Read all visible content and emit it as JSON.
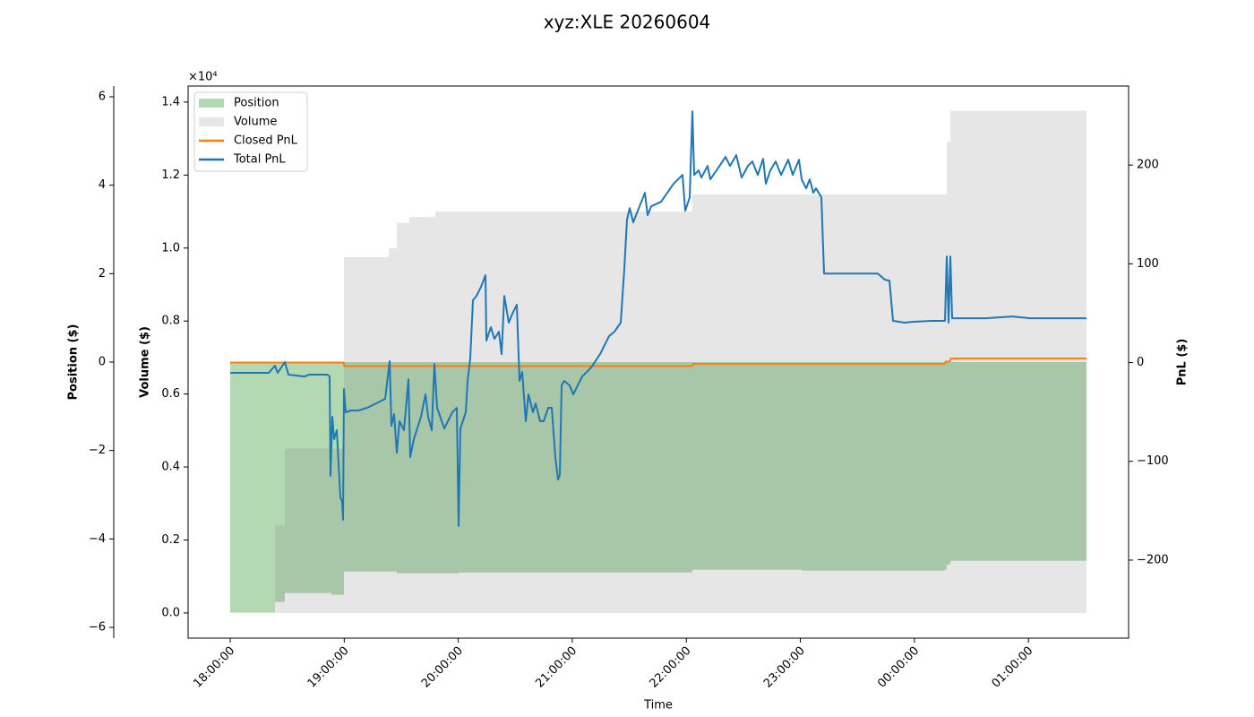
{
  "chart_data": {
    "type": "line",
    "title": "xyz:XLE 20260604",
    "xlabel": "Time",
    "xlim": [
      "17:37:51",
      "01:52:42"
    ],
    "xticks": [
      "18:00:00",
      "19:00:00",
      "20:00:00",
      "21:00:00",
      "22:00:00",
      "23:00:00",
      "00:00:00",
      "01:00:00"
    ],
    "legend": "upper left",
    "axes": {
      "position": {
        "label": "Position ($)",
        "color": "green",
        "offset_label": "×10⁴",
        "ylim": [
          -62430,
          62430
        ],
        "yticks": [
          {
            "value": 60000,
            "label": "6"
          },
          {
            "value": 40000,
            "label": "4"
          },
          {
            "value": 20000,
            "label": "2"
          },
          0,
          {
            "value": -20000,
            "label": "−2"
          },
          {
            "value": -40000,
            "label": "−4"
          },
          {
            "value": -60000,
            "label": "−6"
          }
        ]
      },
      "volume": {
        "label": "Volume ($)",
        "color": "gray",
        "ylim": [
          -0.069,
          1.444
        ],
        "yticks": [
          {
            "value": 0,
            "label": "0.0"
          },
          0.2,
          0.4,
          0.6,
          0.8,
          {
            "value": 1,
            "label": "1.0"
          },
          1.2,
          1.4
        ]
      },
      "pnl": {
        "label": "PnL ($)",
        "color": "#000000",
        "ylim": [
          -279,
          280
        ],
        "yticks": [
          {
            "value": -200,
            "label": "−200"
          },
          {
            "value": -100,
            "label": "−100"
          },
          0,
          100,
          200
        ]
      }
    },
    "series": [
      {
        "name": "Position",
        "kind": "step-area",
        "axis": "position",
        "color": "green",
        "alpha": 0.3,
        "x": [
          "18:00:00",
          "18:23:34",
          "18:28:45",
          "18:53:13",
          "18:59:51",
          "19:27:40",
          "20:00:11",
          "22:03:11",
          "23:00:41",
          "00:16:06",
          "00:17:02",
          "00:18:56",
          "01:30:34"
        ],
        "values": [
          -56680,
          -54250,
          -52230,
          -52630,
          -47370,
          -47770,
          -47570,
          -46960,
          -47170,
          -46960,
          -45750,
          -44940,
          -44940
        ]
      },
      {
        "name": "Volume",
        "kind": "step-area",
        "axis": "volume",
        "color": "gray",
        "alpha": 0.2,
        "x": [
          "18:00:00",
          "18:23:34",
          "18:28:45",
          "18:59:51",
          "19:23:25",
          "19:27:40",
          "19:34:16",
          "19:47:56",
          "22:03:11",
          "00:17:02",
          "00:18:56",
          "01:30:34"
        ],
        "values": [
          0,
          0.24,
          0.45,
          0.975,
          1.0,
          1.069,
          1.085,
          1.1,
          1.147,
          1.29,
          1.376,
          1.376
        ]
      },
      {
        "name": "Closed PnL",
        "kind": "step-line",
        "axis": "pnl",
        "color": "#ff7f0e",
        "alpha": 1,
        "x": [
          "18:00:00",
          "18:59:51",
          "22:03:11",
          "00:16:06",
          "00:18:56",
          "01:30:34"
        ],
        "values": [
          0,
          -3.6,
          -1.4,
          1.0,
          4.1,
          4.1
        ]
      },
      {
        "name": "Total PnL",
        "kind": "line",
        "axis": "pnl",
        "color": "#1f77b4",
        "alpha": 1,
        "x": [
          "18:00:00",
          "18:20:16",
          "18:23:34",
          "18:24:59",
          "18:28:45",
          "18:30:38",
          "18:39:07",
          "18:41:28",
          "18:50:54",
          "18:52:19",
          "18:52:47",
          "18:53:44",
          "18:54:40",
          "18:56:05",
          "18:57:58",
          "18:58:55",
          "18:59:23",
          "18:59:51",
          "19:00:48",
          "19:03:38",
          "19:07:24",
          "19:12:07",
          "19:16:49",
          "19:21:32",
          "19:23:53",
          "19:24:50",
          "19:26:15",
          "19:27:40",
          "19:29:05",
          "19:31:26",
          "19:33:47",
          "19:34:44",
          "19:36:37",
          "19:40:23",
          "19:42:44",
          "19:44:10",
          "19:46:02",
          "19:47:28",
          "19:48:52",
          "19:52:38",
          "19:56:53",
          "19:59:14",
          "20:00:11",
          "20:01:07",
          "20:03:57",
          "20:04:53",
          "20:06:19",
          "20:07:43",
          "20:09:37",
          "20:11:58",
          "20:14:19",
          "20:14:47",
          "20:17:09",
          "20:19:02",
          "20:21:23",
          "20:22:48",
          "20:24:13",
          "20:26:34",
          "20:28:28",
          "20:30:49",
          "20:32:14",
          "20:33:38",
          "20:35:32",
          "20:36:56",
          "20:39:18",
          "20:40:43",
          "20:43:04",
          "20:44:58",
          "20:47:19",
          "20:49:12",
          "20:51:05",
          "20:52:30",
          "20:53:26",
          "20:54:23",
          "20:55:47",
          "20:58:37",
          "21:00:31",
          "21:02:52",
          "21:05:13",
          "21:09:56",
          "21:14:39",
          "21:19:22",
          "21:22:11",
          "21:25:29",
          "21:27:22",
          "21:28:47",
          "21:30:12",
          "21:32:05",
          "21:34:26",
          "21:38:13",
          "21:39:38",
          "21:41:31",
          "21:46:42",
          "21:50:00",
          "21:53:17",
          "21:58:01",
          "21:59:25",
          "22:01:47",
          "22:03:11",
          "22:04:08",
          "22:06:29",
          "22:07:54",
          "22:11:12",
          "22:12:37",
          "22:15:55",
          "22:20:38",
          "22:22:59",
          "22:26:17",
          "22:29:07",
          "22:32:25",
          "22:34:46",
          "22:37:36",
          "22:40:25",
          "22:41:50",
          "22:44:11",
          "22:47:01",
          "22:49:51",
          "22:53:37",
          "22:55:59",
          "22:59:17",
          "23:00:41",
          "23:03:03",
          "23:04:56",
          "23:06:49",
          "23:08:14",
          "23:11:04",
          "23:12:28",
          "23:40:45",
          "23:44:31",
          "23:46:53",
          "23:48:46",
          "23:54:53",
          "23:59:36",
          "00:09:02",
          "00:16:06",
          "00:17:02",
          "00:17:59",
          "00:18:56",
          "00:19:52",
          "00:37:19",
          "00:51:27",
          "01:00:52",
          "01:30:34"
        ],
        "values": [
          -10.4,
          -10.4,
          -3.2,
          -10.4,
          0.5,
          -12.2,
          -14.1,
          -12.2,
          -12.2,
          -14.1,
          -114.7,
          -54.9,
          -77.6,
          -68.5,
          -136.5,
          -141.0,
          -159.2,
          -26.8,
          -50.3,
          -48.5,
          -48.5,
          -45.8,
          -41.3,
          -36.7,
          1.4,
          -63.9,
          -52.2,
          -91.2,
          -59.4,
          -68.5,
          -16.8,
          -95.7,
          -77.6,
          -54.9,
          -32.2,
          -54.9,
          -68.5,
          -1.4,
          -45.8,
          -66.7,
          -50.3,
          -45.8,
          -165.5,
          -66.7,
          -50.3,
          -18.6,
          4.1,
          63.0,
          67.6,
          76.6,
          88.4,
          22.2,
          35.8,
          24.0,
          31.3,
          8.6,
          67.6,
          40.4,
          49.4,
          58.5,
          -18.6,
          -9.5,
          -59.4,
          -32.2,
          -50.3,
          -41.3,
          -59.4,
          -59.4,
          -45.8,
          -45.8,
          -95.7,
          -118.4,
          -113.8,
          -23.1,
          -18.6,
          -23.1,
          -32.2,
          -23.1,
          -14.1,
          -5.0,
          8.6,
          26.8,
          31.3,
          40.4,
          94.8,
          144.7,
          156.5,
          142.0,
          153.7,
          171.9,
          149.2,
          158.3,
          162.8,
          171.9,
          181.0,
          190.0,
          153.7,
          167.3,
          254.4,
          190.0,
          194.6,
          187.3,
          199.1,
          185.5,
          194.6,
          208.2,
          199.1,
          210.0,
          187.3,
          199.1,
          203.6,
          190.0,
          206.3,
          181.0,
          194.6,
          203.6,
          190.0,
          205.4,
          190.0,
          205.4,
          185.5,
          176.4,
          185.5,
          171.9,
          176.4,
          167.3,
          90.2,
          90.2,
          83.9,
          83.0,
          42.2,
          40.4,
          41.3,
          42.2,
          42.2,
          107.5,
          40.4,
          107.5,
          44.9,
          44.9,
          46.7,
          44.9,
          44.9
        ]
      }
    ]
  }
}
